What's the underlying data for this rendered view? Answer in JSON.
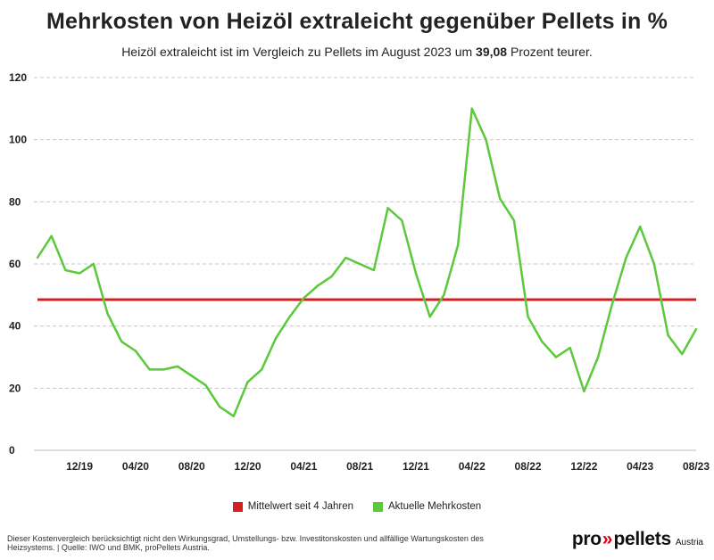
{
  "title": "Mehrkosten von Heizöl extraleicht gegenüber Pellets in %",
  "subtitle": {
    "part1": "Heizöl extraleicht",
    "part2": " ist im Vergleich zu Pellets im August 2023 um ",
    "value": "39,08",
    "part3": " Prozent teurer."
  },
  "chart_data": {
    "type": "line",
    "ylim": [
      0,
      120
    ],
    "yticks": [
      0,
      20,
      40,
      60,
      80,
      100,
      120
    ],
    "xtick_labels": [
      "12/19",
      "04/20",
      "08/20",
      "12/20",
      "04/21",
      "08/21",
      "12/21",
      "04/22",
      "08/22",
      "12/22",
      "04/23",
      "08/23"
    ],
    "xtick_index": [
      4,
      8,
      12,
      16,
      20,
      24,
      28,
      32,
      36,
      40,
      44,
      48
    ],
    "grid": true,
    "legend_position": "bottom",
    "series": [
      {
        "name": "Aktuelle Mehrkosten",
        "color": "#5cc83c",
        "values": [
          62,
          69,
          58,
          57,
          60,
          44,
          35,
          32,
          26,
          26,
          27,
          24,
          21,
          14,
          11,
          22,
          26,
          36,
          43,
          49,
          53,
          56,
          62,
          60,
          58,
          78,
          74,
          57,
          43,
          50,
          66,
          110,
          100,
          81,
          74,
          43,
          35,
          30,
          33,
          19,
          30,
          47,
          62,
          72,
          60,
          37,
          31,
          39
        ]
      },
      {
        "name": "Mittelwert seit 4 Jahren",
        "color": "#d62020",
        "constant": 48.5
      }
    ]
  },
  "legend": [
    {
      "label": "Mittelwert seit 4 Jahren",
      "color": "#d62020"
    },
    {
      "label": "Aktuelle Mehrkosten",
      "color": "#5cc83c"
    }
  ],
  "footnote": "Dieser Kostenvergleich berücksichtigt nicht den Wirkungsgrad, Umstellungs- bzw. Investitonskosten und allfällige Wartungskosten des Heizsystems. | Quelle: IWO und BMK, proPellets Austria.",
  "logo": {
    "pro": "pro",
    "chevrons": "»",
    "pellets": "pellets",
    "sub": "Austria"
  }
}
